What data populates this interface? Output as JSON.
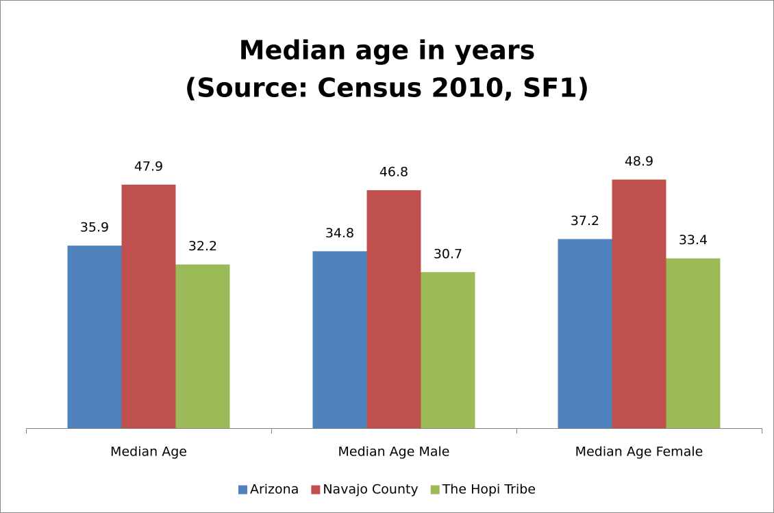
{
  "chart_data": {
    "type": "bar",
    "title": "Median age in years",
    "subtitle": "(Source: Census 2010, SF1)",
    "categories": [
      "Median Age",
      "Median Age Male",
      "Median Age Female"
    ],
    "series": [
      {
        "name": "Arizona",
        "color": "#4f81bd",
        "values": [
          35.9,
          34.8,
          37.2
        ]
      },
      {
        "name": "Navajo County",
        "color": "#c0504d",
        "values": [
          47.9,
          46.8,
          48.9
        ]
      },
      {
        "name": "The Hopi Tribe",
        "color": "#9bbb59",
        "values": [
          32.2,
          30.7,
          33.4
        ]
      }
    ],
    "ylim": [
      0,
      60
    ],
    "legend": "bottom"
  }
}
